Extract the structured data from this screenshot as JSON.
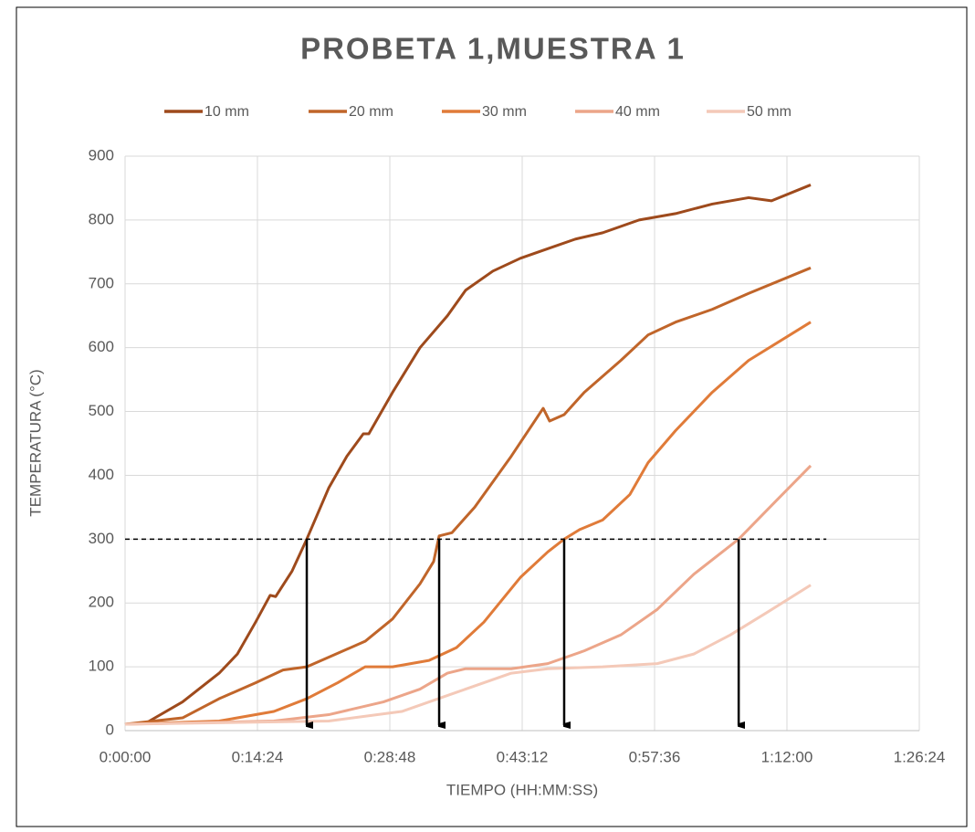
{
  "chart_data": {
    "type": "line",
    "title": "PROBETA 1,MUESTRA 1",
    "x_label": "TIEMPO (HH:MM:SS)",
    "y_label": "TEMPERATURA (°C)",
    "xlim": [
      0,
      5184
    ],
    "xticks": [
      {
        "value": 0,
        "label": "0:00:00"
      },
      {
        "value": 864,
        "label": "0:14:24"
      },
      {
        "value": 1728,
        "label": "0:28:48"
      },
      {
        "value": 2592,
        "label": "0:43:12"
      },
      {
        "value": 3456,
        "label": "0:57:36"
      },
      {
        "value": 4320,
        "label": "1:12:00"
      },
      {
        "value": 5184,
        "label": "1:26:24"
      }
    ],
    "ylim": [
      0,
      900
    ],
    "yticks": [
      0,
      100,
      200,
      300,
      400,
      500,
      600,
      700,
      800,
      900
    ],
    "grid": true,
    "legend": "top",
    "reference_line": {
      "y": 300,
      "x_end": 4577
    },
    "arrows": [
      1186,
      2050,
      2866,
      4005
    ],
    "series": [
      {
        "name": "10 mm",
        "color": "#9e4a1c",
        "x": [
          0,
          137,
          375,
          614,
          733,
          852,
          947,
          983,
          1090,
          1186,
          1329,
          1448,
          1555,
          1591,
          1746,
          1925,
          2104,
          2223,
          2401,
          2580,
          2759,
          2938,
          3117,
          3355,
          3593,
          3832,
          4070,
          4219,
          4475
        ],
        "values": [
          10,
          12,
          45,
          90,
          120,
          170,
          212,
          210,
          250,
          300,
          380,
          430,
          465,
          465,
          530,
          600,
          650,
          690,
          720,
          740,
          755,
          770,
          780,
          800,
          810,
          825,
          835,
          830,
          855
        ]
      },
      {
        "name": "20 mm",
        "color": "#c0652a",
        "x": [
          0,
          375,
          614,
          852,
          1031,
          1186,
          1329,
          1567,
          1746,
          1925,
          2014,
          2050,
          2133,
          2282,
          2521,
          2729,
          2771,
          2866,
          2997,
          3236,
          3414,
          3593,
          3832,
          4070,
          4475
        ],
        "values": [
          10,
          20,
          50,
          75,
          95,
          100,
          115,
          140,
          175,
          230,
          265,
          305,
          310,
          350,
          430,
          505,
          485,
          495,
          530,
          580,
          620,
          640,
          660,
          685,
          725
        ]
      },
      {
        "name": "30 mm",
        "color": "#e07b39",
        "x": [
          0,
          614,
          971,
          1186,
          1388,
          1567,
          1746,
          1984,
          2163,
          2342,
          2580,
          2759,
          2866,
          2967,
          3117,
          3295,
          3414,
          3593,
          3832,
          4070,
          4475
        ],
        "values": [
          10,
          15,
          30,
          50,
          75,
          100,
          100,
          110,
          130,
          170,
          240,
          280,
          300,
          315,
          330,
          370,
          420,
          470,
          530,
          580,
          640
        ]
      },
      {
        "name": "40 mm",
        "color": "#eca589",
        "x": [
          0,
          971,
          1329,
          1686,
          1925,
          2104,
          2223,
          2521,
          2759,
          2997,
          3236,
          3474,
          3712,
          4005,
          4249,
          4475
        ],
        "values": [
          10,
          15,
          25,
          45,
          65,
          90,
          97,
          97,
          105,
          125,
          150,
          190,
          245,
          300,
          360,
          415
        ]
      },
      {
        "name": "50 mm",
        "color": "#f4c9b8",
        "x": [
          0,
          1329,
          1806,
          2163,
          2521,
          2759,
          3117,
          3474,
          3712,
          3951,
          4189,
          4475
        ],
        "values": [
          10,
          15,
          30,
          60,
          90,
          97,
          100,
          105,
          120,
          150,
          185,
          228
        ]
      }
    ]
  }
}
